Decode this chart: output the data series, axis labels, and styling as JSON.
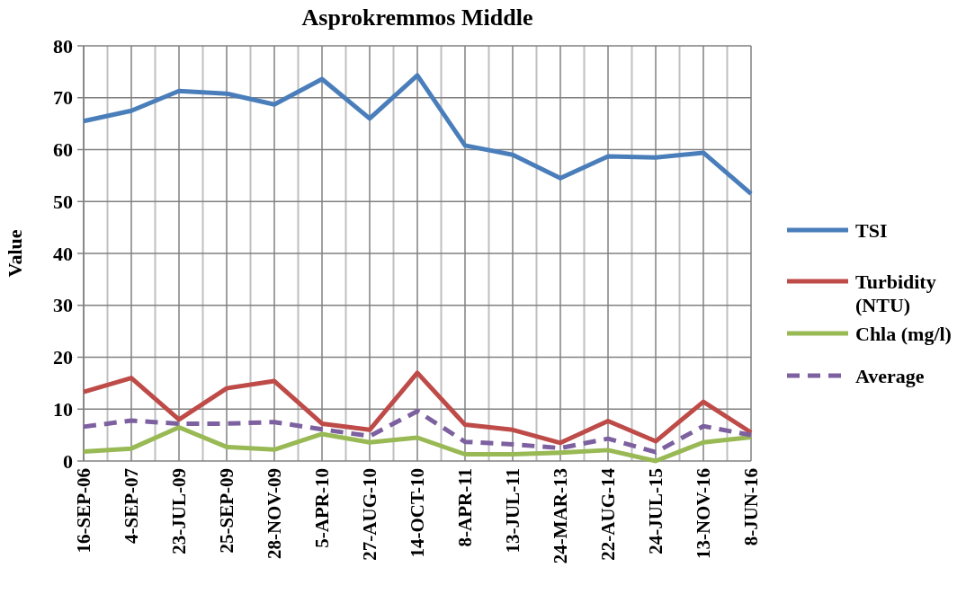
{
  "chart_data": {
    "type": "line",
    "title": "Asprokremmos Middle",
    "ylabel": "Value",
    "categories": [
      "16-SEP-06",
      "4-SEP-07",
      "23-JUL-09",
      "25-SEP-09",
      "28-NOV-09",
      "5-APR-10",
      "27-AUG-10",
      "14-OCT-10",
      "8-APR-11",
      "13-JUL-11",
      "24-MAR-13",
      "22-AUG-14",
      "24-JUL-15",
      "13-NOV-16",
      "8-JUN-16"
    ],
    "series": [
      {
        "name": "TSI",
        "color": "#4a7ebb",
        "values": [
          65.5,
          67.5,
          71.3,
          70.8,
          68.7,
          73.6,
          66,
          74.3,
          60.8,
          59,
          54.5,
          58.7,
          58.5,
          59.4,
          51.5
        ]
      },
      {
        "name": "Turbidity (NTU)",
        "color": "#be4b48",
        "values": [
          13.3,
          16,
          8,
          14,
          15.4,
          7.2,
          6,
          17,
          7,
          6,
          3.5,
          7.7,
          3.8,
          11.4,
          5.5
        ]
      },
      {
        "name": "Chla (mg/l)",
        "color": "#98b954",
        "values": [
          1.8,
          2.4,
          6.5,
          2.7,
          2.2,
          5.2,
          3.6,
          4.5,
          1.3,
          1.3,
          1.6,
          2.1,
          0,
          3.6,
          4.6
        ]
      },
      {
        "name": "Average",
        "color": "#7d60a0",
        "line_style": "dashed",
        "values": [
          6.6,
          7.8,
          7.2,
          7.2,
          7.5,
          6.1,
          4.8,
          9.6,
          3.7,
          3.2,
          2.5,
          4.3,
          1.7,
          6.7,
          5
        ]
      }
    ],
    "ylim": [
      0,
      80
    ],
    "yticks": [
      0,
      10,
      20,
      30,
      40,
      50,
      60,
      70,
      80
    ],
    "grid": true,
    "legend": "right",
    "line_style": "solid"
  }
}
